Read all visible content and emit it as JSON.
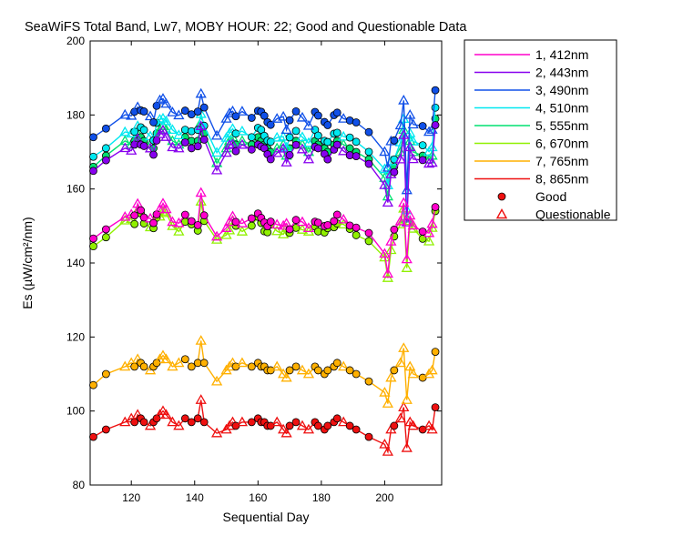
{
  "chart_data": {
    "type": "line",
    "title": "SeaWiFS Total Band,  Lw7, MOBY HOUR: 22;  Good and Questionable Data",
    "xlabel": "Sequential Day",
    "ylabel": "Es (µW/cm²/nm)",
    "xlim": [
      107,
      218
    ],
    "ylim": [
      80,
      200
    ],
    "xticks": [
      "120",
      "140",
      "160",
      "180",
      "200"
    ],
    "yticks": [
      "80",
      "100",
      "120",
      "140",
      "160",
      "180",
      "200"
    ],
    "grid": false,
    "legend_position": "top-right outside",
    "series": [
      {
        "name": "1, 412nm",
        "color": "#ff00cc",
        "group": "mid",
        "offset": 0.6
      },
      {
        "name": "2, 443nm",
        "color": "#8800ee",
        "group": "top",
        "offset": -1.5
      },
      {
        "name": "3, 490nm",
        "color": "#1050e8",
        "group": "top",
        "offset": 7.5
      },
      {
        "name": "4, 510nm",
        "color": "#00e8f0",
        "group": "top",
        "offset": 2.5
      },
      {
        "name": "5, 555nm",
        "color": "#00e070",
        "group": "top",
        "offset": 0.0
      },
      {
        "name": "6, 670nm",
        "color": "#90f000",
        "group": "mid",
        "offset": -1.0
      },
      {
        "name": "7, 765nm",
        "color": "#ffb000",
        "group": "y765",
        "offset": 0.0
      },
      {
        "name": "8, 865nm",
        "color": "#ee1010",
        "group": "r865",
        "offset": 0.0
      }
    ],
    "days": [
      108,
      112,
      118,
      120,
      121,
      122,
      123,
      124,
      126,
      127,
      128,
      129,
      130,
      131,
      133,
      135,
      137,
      139,
      141,
      142,
      143,
      147,
      150,
      151,
      152,
      153,
      155,
      158,
      160,
      161,
      162,
      163,
      164,
      166,
      168,
      169,
      170,
      172,
      174,
      176,
      178,
      179,
      181,
      182,
      184,
      185,
      187,
      189,
      191,
      195,
      200,
      201,
      202,
      203,
      205,
      206,
      207,
      208,
      209,
      212,
      214,
      215,
      216
    ],
    "base_values": {
      "top": [
        166,
        169,
        173,
        172,
        173,
        175,
        174,
        173,
        172,
        171,
        175,
        176,
        177,
        176,
        173,
        172,
        174,
        173,
        173,
        178,
        175,
        167,
        171,
        173,
        174,
        172,
        173,
        172,
        174,
        173,
        172,
        171,
        170,
        171,
        172,
        169,
        171,
        173,
        172,
        170,
        173,
        172,
        171,
        170,
        172,
        173,
        172,
        171,
        170,
        168,
        163,
        158,
        165,
        166,
        170,
        176,
        152,
        173,
        170,
        169,
        168,
        169,
        179
      ],
      "mid": [
        146,
        148,
        152,
        153,
        152,
        155,
        154,
        152,
        151,
        150,
        153,
        154,
        155,
        154,
        151,
        150,
        152,
        151,
        150,
        158,
        152,
        147,
        149,
        150,
        152,
        151,
        150,
        151,
        153,
        152,
        150,
        149,
        151,
        150,
        149,
        150,
        149,
        151,
        150,
        149,
        151,
        150,
        149,
        150,
        151,
        152,
        151,
        150,
        149,
        147,
        142,
        137,
        145,
        148,
        151,
        156,
        140,
        152,
        150,
        148,
        147,
        150,
        155
      ],
      "y765": [
        107,
        110,
        112,
        113,
        112,
        114,
        113,
        112,
        111,
        112,
        113,
        114,
        115,
        114,
        112,
        113,
        114,
        112,
        113,
        119,
        113,
        108,
        111,
        112,
        113,
        112,
        113,
        112,
        113,
        112,
        112,
        111,
        111,
        112,
        110,
        109,
        111,
        112,
        111,
        110,
        112,
        111,
        110,
        111,
        112,
        113,
        112,
        111,
        110,
        108,
        105,
        102,
        109,
        111,
        113,
        117,
        103,
        112,
        110,
        109,
        110,
        111,
        116
      ],
      "r865": [
        93,
        95,
        97,
        98,
        97,
        99,
        98,
        97,
        96,
        97,
        98,
        99,
        100,
        99,
        97,
        96,
        98,
        97,
        98,
        103,
        97,
        94,
        95,
        96,
        97,
        96,
        97,
        97,
        98,
        97,
        97,
        96,
        96,
        97,
        95,
        94,
        96,
        97,
        96,
        95,
        97,
        96,
        95,
        96,
        97,
        98,
        97,
        96,
        95,
        93,
        91,
        89,
        95,
        96,
        98,
        101,
        90,
        97,
        96,
        95,
        96,
        95,
        101
      ]
    },
    "questionable_days": [
      118,
      120,
      122,
      126,
      129,
      130,
      131,
      133,
      135,
      142,
      147,
      150,
      151,
      152,
      155,
      166,
      168,
      169,
      174,
      176,
      187,
      200,
      201,
      202,
      205,
      206,
      207,
      208,
      209,
      214,
      215
    ],
    "marker_legend": {
      "good": "Good",
      "questionable": "Questionable"
    }
  }
}
